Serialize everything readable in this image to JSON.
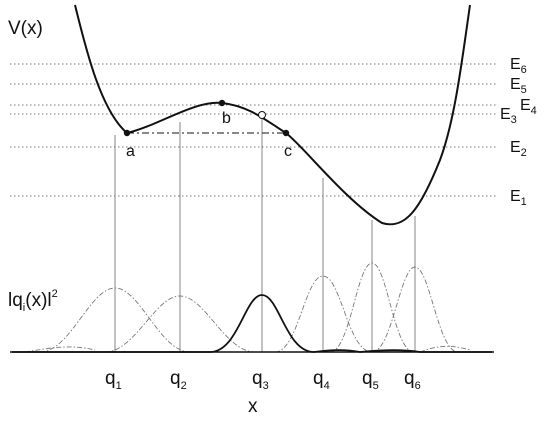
{
  "diagram": {
    "y_label": "V(x)",
    "x_label": "x",
    "density_label_parts": [
      "lq",
      "i",
      "(x)l",
      "2"
    ],
    "energy_levels": [
      {
        "base": "E",
        "sub": "1"
      },
      {
        "base": "E",
        "sub": "2"
      },
      {
        "base": "E",
        "sub": "3"
      },
      {
        "base": "E",
        "sub": "4"
      },
      {
        "base": "E",
        "sub": "5"
      },
      {
        "base": "E",
        "sub": "6"
      }
    ],
    "points": [
      "a",
      "b",
      "c"
    ],
    "positions": [
      {
        "base": "q",
        "sub": "1"
      },
      {
        "base": "q",
        "sub": "2"
      },
      {
        "base": "q",
        "sub": "3"
      },
      {
        "base": "q",
        "sub": "4"
      },
      {
        "base": "q",
        "sub": "5"
      },
      {
        "base": "q",
        "sub": "6"
      }
    ]
  }
}
